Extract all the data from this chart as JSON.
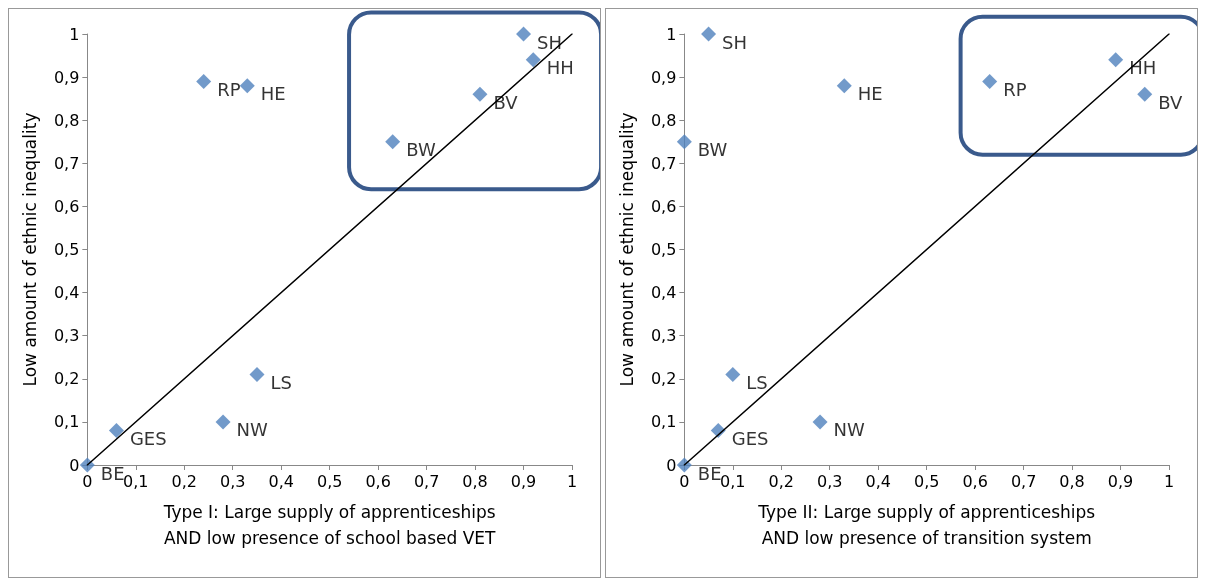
{
  "chart_data": [
    {
      "type": "scatter",
      "xlabel": "Type I: Large supply of apprenticeships\nAND low presence of school based VET",
      "ylabel": "Low amount of ethnic inequality",
      "xlim": [
        0,
        1
      ],
      "ylim": [
        0,
        1
      ],
      "marker": "diamond",
      "grid": false,
      "xticks": [
        {
          "value": 0,
          "label": "0"
        },
        {
          "value": 0.1,
          "label": "0,1"
        },
        {
          "value": 0.2,
          "label": "0,2"
        },
        {
          "value": 0.3,
          "label": "0,3"
        },
        {
          "value": 0.4,
          "label": "0,4"
        },
        {
          "value": 0.5,
          "label": "0,5"
        },
        {
          "value": 0.6,
          "label": "0,6"
        },
        {
          "value": 0.7,
          "label": "0,7"
        },
        {
          "value": 0.8,
          "label": "0,8"
        },
        {
          "value": 0.9,
          "label": "0,9"
        },
        {
          "value": 1,
          "label": "1"
        }
      ],
      "yticks": [
        {
          "value": 0,
          "label": "0"
        },
        {
          "value": 0.1,
          "label": "0,1"
        },
        {
          "value": 0.2,
          "label": "0,2"
        },
        {
          "value": 0.3,
          "label": "0,3"
        },
        {
          "value": 0.4,
          "label": "0,4"
        },
        {
          "value": 0.5,
          "label": "0,5"
        },
        {
          "value": 0.6,
          "label": "0,6"
        },
        {
          "value": 0.7,
          "label": "0,7"
        },
        {
          "value": 0.8,
          "label": "0,8"
        },
        {
          "value": 0.9,
          "label": "0,9"
        },
        {
          "value": 1,
          "label": "1"
        }
      ],
      "series": [
        {
          "type": "scatter",
          "color": "#4f81bd",
          "x": [
            0,
            0.06,
            0.24,
            0.33,
            0.35,
            0.28,
            0.9,
            0.92,
            0.81,
            0.63
          ],
          "values": [
            0,
            0.08,
            0.89,
            0.88,
            0.21,
            0.1,
            1,
            0.94,
            0.86,
            0.75
          ],
          "value_labels": [
            "BE",
            "GES",
            "RP",
            "HE",
            "LS",
            "NW",
            "SH",
            "HH",
            "BV",
            "BW"
          ]
        },
        {
          "type": "line",
          "color": "#000000",
          "marker": "none",
          "x": [
            0,
            1
          ],
          "values": [
            0,
            1
          ]
        }
      ]
    },
    {
      "type": "scatter",
      "xlabel": "Type II: Large supply of apprenticeships\nAND low presence of transition system",
      "ylabel": "Low amount of ethnic inequality",
      "xlim": [
        0,
        1
      ],
      "ylim": [
        0,
        1
      ],
      "marker": "diamond",
      "grid": false,
      "xticks": [
        {
          "value": 0,
          "label": "0"
        },
        {
          "value": 0.1,
          "label": "0,1"
        },
        {
          "value": 0.2,
          "label": "0,2"
        },
        {
          "value": 0.3,
          "label": "0,3"
        },
        {
          "value": 0.4,
          "label": "0,4"
        },
        {
          "value": 0.5,
          "label": "0,5"
        },
        {
          "value": 0.6,
          "label": "0,6"
        },
        {
          "value": 0.7,
          "label": "0,7"
        },
        {
          "value": 0.8,
          "label": "0,8"
        },
        {
          "value": 0.9,
          "label": "0,9"
        },
        {
          "value": 1,
          "label": "1"
        }
      ],
      "yticks": [
        {
          "value": 0,
          "label": "0"
        },
        {
          "value": 0.1,
          "label": "0,1"
        },
        {
          "value": 0.2,
          "label": "0,2"
        },
        {
          "value": 0.3,
          "label": "0,3"
        },
        {
          "value": 0.4,
          "label": "0,4"
        },
        {
          "value": 0.5,
          "label": "0,5"
        },
        {
          "value": 0.6,
          "label": "0,6"
        },
        {
          "value": 0.7,
          "label": "0,7"
        },
        {
          "value": 0.8,
          "label": "0,8"
        },
        {
          "value": 0.9,
          "label": "0,9"
        },
        {
          "value": 1,
          "label": "1"
        }
      ],
      "series": [
        {
          "type": "scatter",
          "color": "#4f81bd",
          "x": [
            0,
            0.07,
            0.05,
            0.33,
            0.1,
            0.28,
            0,
            0.63,
            0.89,
            0.95
          ],
          "values": [
            0,
            0.08,
            1,
            0.88,
            0.21,
            0.1,
            0.75,
            0.89,
            0.94,
            0.86
          ],
          "value_labels": [
            "BE",
            "GES",
            "SH",
            "HE",
            "LS",
            "NW",
            "BW",
            "RP",
            "HH",
            "BV"
          ]
        },
        {
          "type": "line",
          "color": "#000000",
          "marker": "none",
          "x": [
            0,
            1
          ],
          "values": [
            0,
            1
          ]
        }
      ]
    }
  ]
}
